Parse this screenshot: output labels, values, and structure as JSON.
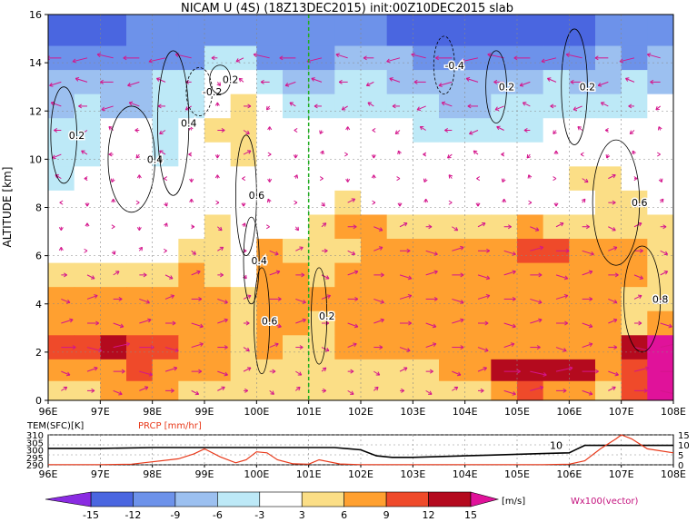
{
  "chart_data": [
    {
      "type": "heatmap",
      "title": "NICAM U (4S) (18Z13DEC2015) init:00Z10DEC2015 slab",
      "xlabel": "",
      "ylabel": "ALTITUDE [km]",
      "xlim": [
        96,
        108
      ],
      "ylim": [
        0,
        16
      ],
      "x_ticks": [
        "96E",
        "97E",
        "98E",
        "99E",
        "100E",
        "101E",
        "102E",
        "103E",
        "104E",
        "105E",
        "106E",
        "107E",
        "108E"
      ],
      "y_ticks": [
        "0",
        "2",
        "4",
        "6",
        "8",
        "10",
        "12",
        "14",
        "16"
      ],
      "grid": true,
      "marked_longitude": 101,
      "shading_field": "zonal wind U [m/s]",
      "colorbar": {
        "levels": [
          "-15",
          "-12",
          "-9",
          "-6",
          "-3",
          "3",
          "6",
          "9",
          "12",
          "15"
        ],
        "unit": "[m/s]",
        "colors": [
          "#8a2be2",
          "#4a66e0",
          "#6d92ea",
          "#9cc0f0",
          "#bde9f7",
          "#ffffff",
          "#fbde86",
          "#ffa030",
          "#ef4a2a",
          "#b40a1e",
          "#e0129a"
        ]
      },
      "vector_legend": "Wx100(vector)",
      "contour_labels": [
        "0.2",
        "0.4",
        "0.6",
        "0.8",
        "-0.2",
        "-0.4"
      ],
      "shading": {
        "cols": [
          96.0,
          96.5,
          97.0,
          97.5,
          98.0,
          98.5,
          99.0,
          99.5,
          100.0,
          100.5,
          101.0,
          101.5,
          102.0,
          102.5,
          103.0,
          103.5,
          104.0,
          104.5,
          105.0,
          105.5,
          106.0,
          106.5,
          107.0,
          107.5
        ],
        "rows_km": [
          15.2,
          14.2,
          13.2,
          12.2,
          11.2,
          10.2,
          9.2,
          8.2,
          7.2,
          6.2,
          5.2,
          4.2,
          3.2,
          2.2,
          1.2,
          0.4
        ],
        "levels": [
          [
            -15,
            -14,
            -13,
            -12,
            -12,
            -12,
            -12,
            -11,
            -11,
            -11,
            -11,
            -11,
            -12,
            -13,
            -14,
            -14,
            -14,
            -14,
            -13,
            -13,
            -13,
            -12,
            -12,
            -12
          ],
          [
            -10,
            -10,
            -11,
            -11,
            -12,
            -11,
            -4,
            -5,
            -11,
            -11,
            -10,
            -8,
            -7,
            -9,
            -10,
            -12,
            -12,
            -12,
            -11,
            -10,
            -11,
            -9,
            -10,
            -9
          ],
          [
            -8,
            -8,
            -9,
            -8,
            -6,
            -4,
            2,
            -3,
            -6,
            -7,
            -7,
            -6,
            -5,
            -7,
            -8,
            -9,
            -8,
            -7,
            -7,
            -6,
            -8,
            -7,
            -6,
            -7
          ],
          [
            -7,
            -6,
            -8,
            -7,
            -5,
            -4,
            0,
            5,
            -2,
            -4,
            -5,
            -4,
            -4,
            -5,
            -6,
            -7,
            -7,
            -6,
            -5,
            -4,
            -6,
            -5,
            -4,
            -3
          ],
          [
            -5,
            -4,
            -3,
            -3,
            -4,
            -1,
            5,
            4,
            0,
            -1,
            -1,
            0,
            -1,
            -3,
            -4,
            -5,
            -6,
            -5,
            -4,
            -2,
            -3,
            -2,
            -3,
            -1
          ],
          [
            -6,
            -4,
            -3,
            -2,
            -4,
            -2,
            0,
            5,
            1,
            0,
            1,
            0,
            0,
            -1,
            -2,
            -3,
            -3,
            -2,
            -2,
            0,
            -1,
            -1,
            -1,
            0
          ],
          [
            -4,
            -2,
            -1,
            0,
            -1,
            0,
            0,
            -1,
            0,
            1,
            1,
            0,
            0,
            0,
            -1,
            -2,
            -1,
            -1,
            -1,
            0,
            4,
            5,
            2,
            1
          ],
          [
            -1,
            0,
            0,
            0,
            1,
            0,
            1,
            0,
            -1,
            1,
            2,
            5,
            1,
            0,
            0,
            0,
            0,
            0,
            1,
            0,
            2,
            5,
            4,
            2
          ],
          [
            0,
            0,
            1,
            0,
            1,
            2,
            3,
            1,
            0,
            2,
            3,
            6,
            6,
            5,
            4,
            4,
            5,
            5,
            6,
            5,
            5,
            5,
            5,
            4
          ],
          [
            0,
            0,
            1,
            2,
            1,
            3,
            4,
            2,
            6,
            5,
            4,
            5,
            6,
            7,
            8,
            8,
            8,
            8,
            9,
            9,
            8,
            6,
            6,
            5
          ],
          [
            4,
            5,
            4,
            5,
            5,
            6,
            4,
            2,
            7,
            6,
            5,
            7,
            7,
            8,
            8,
            8,
            8,
            8,
            8,
            8,
            7,
            7,
            6,
            5
          ],
          [
            6,
            7,
            6,
            7,
            6,
            7,
            7,
            5,
            8,
            7,
            6,
            7,
            7,
            8,
            8,
            8,
            8,
            8,
            8,
            8,
            7,
            6,
            5,
            4
          ],
          [
            8,
            8,
            7,
            8,
            7,
            8,
            7,
            4,
            8,
            7,
            5,
            7,
            7,
            8,
            7,
            8,
            7,
            8,
            8,
            8,
            7,
            6,
            5,
            8
          ],
          [
            10,
            10,
            12,
            10,
            9,
            8,
            7,
            4,
            6,
            5,
            5,
            6,
            6,
            7,
            7,
            8,
            7,
            7,
            7,
            7,
            7,
            6,
            14,
            16
          ],
          [
            6,
            7,
            8,
            9,
            8,
            7,
            7,
            5,
            4,
            4,
            3,
            4,
            4,
            5,
            5,
            6,
            6,
            12,
            13,
            12,
            12,
            7,
            10,
            16
          ],
          [
            4,
            5,
            6,
            6,
            6,
            5,
            5,
            3,
            3,
            3,
            3,
            4,
            3,
            3,
            4,
            4,
            4,
            8,
            9,
            7,
            7,
            5,
            9,
            16
          ]
        ]
      }
    },
    {
      "type": "line",
      "title": "",
      "xlim": [
        96,
        108
      ],
      "x_ticks": [
        "96E",
        "97E",
        "98E",
        "99E",
        "100E",
        "101E",
        "102E",
        "103E",
        "104E",
        "105E",
        "106E",
        "107E",
        "108E"
      ],
      "left_axis": {
        "label": "TEM(SFC)[K]",
        "ticks": [
          "290",
          "295",
          "300",
          "305",
          "310"
        ],
        "range": [
          290,
          310
        ]
      },
      "right_axis": {
        "label": "PRCP [mm/hr]",
        "ticks": [
          "0",
          "5",
          "10",
          "15"
        ],
        "range": [
          0,
          15
        ]
      },
      "series": [
        {
          "name": "TEM(SFC)[K]",
          "color": "#000000",
          "x": [
            96,
            97,
            98,
            99,
            99.5,
            100,
            100.5,
            101,
            101.5,
            102,
            102.3,
            102.6,
            103,
            103.5,
            104,
            104.5,
            105,
            105.5,
            106,
            106.3,
            107,
            108
          ],
          "values": [
            301,
            301,
            301.5,
            301.5,
            301.5,
            301.5,
            301.5,
            301.5,
            301.5,
            300,
            296,
            295,
            295,
            295.5,
            296,
            296.5,
            297,
            297.5,
            298,
            303,
            303,
            303
          ]
        },
        {
          "name": "PRCP [mm/hr]",
          "color": "#e8391a",
          "x": [
            96,
            97,
            97.6,
            98,
            98.5,
            98.8,
            99,
            99.3,
            99.6,
            99.8,
            100,
            100.2,
            100.4,
            100.7,
            101,
            101.2,
            101.6,
            102,
            102.5,
            103,
            103.5,
            104,
            104.5,
            105,
            105.5,
            106,
            106.3,
            106.6,
            106.9,
            107,
            107.2,
            107.5,
            108
          ],
          "values": [
            0.1,
            0.1,
            0.3,
            1.5,
            3,
            5.5,
            8,
            4,
            1,
            2.5,
            6.5,
            6,
            2.5,
            0.5,
            0.3,
            2.5,
            0.4,
            0.1,
            0.1,
            0.1,
            0.1,
            0.1,
            0.1,
            0.1,
            0.1,
            0.3,
            2,
            8,
            13,
            15,
            13,
            8,
            6
          ]
        }
      ],
      "annotations": [
        "10"
      ]
    }
  ]
}
